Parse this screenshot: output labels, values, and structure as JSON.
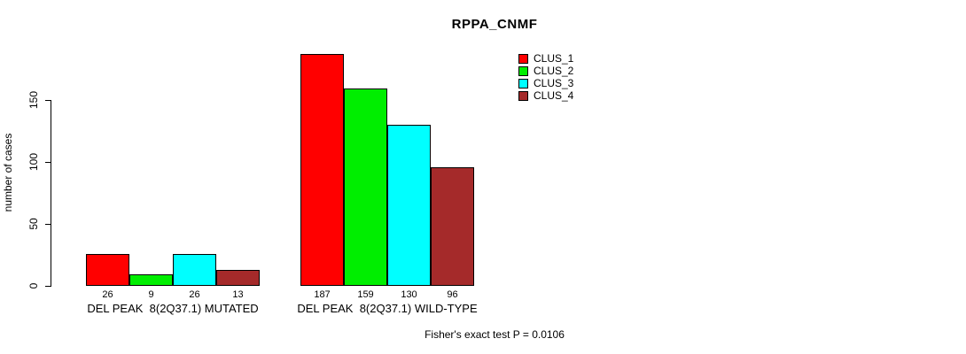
{
  "chart_data": {
    "type": "bar",
    "title": "RPPA_CNMF",
    "ylabel": "number of cases",
    "xlabel": "",
    "ylim": [
      0,
      150
    ],
    "yticks": [
      0,
      50,
      100,
      150
    ],
    "grid": false,
    "legend_position": "top-right",
    "categories": [
      "DEL PEAK  8(2Q37.1) MUTATED",
      "DEL PEAK  8(2Q37.1) WILD-TYPE"
    ],
    "series": [
      {
        "name": "CLUS_1",
        "color": "#ff0000",
        "values": [
          26,
          187
        ]
      },
      {
        "name": "CLUS_2",
        "color": "#00ee00",
        "values": [
          9,
          159
        ]
      },
      {
        "name": "CLUS_3",
        "color": "#00ffff",
        "values": [
          26,
          130
        ]
      },
      {
        "name": "CLUS_4",
        "color": "#a52a2a",
        "values": [
          13,
          96
        ]
      }
    ],
    "bar_value_labels": [
      [
        "26",
        "9",
        "26",
        "13"
      ],
      [
        "187",
        "159",
        "130",
        "96"
      ]
    ],
    "annotation": "Fisher's exact test P = 0.0106"
  }
}
